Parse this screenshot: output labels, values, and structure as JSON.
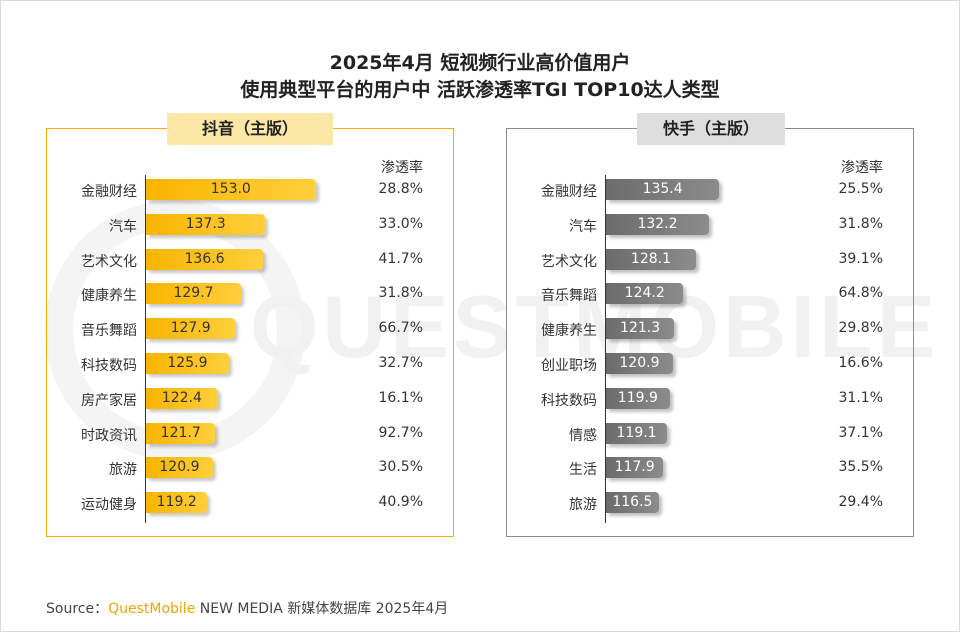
{
  "title_line1": "2025年4月 短视频行业高价值用户",
  "title_line2": "使用典型平台的用户中 活跃渗透率TGI TOP10达人类型",
  "watermark": "QUESTMOBILE",
  "colors": {
    "douyin_bar": "#f9b400",
    "kuaishou_bar": "#6b6b6b",
    "douyin_border": "#f0b000",
    "kuaishou_border": "#8c8c8c"
  },
  "chart_data": [
    {
      "type": "bar",
      "title": "抖音（主版）",
      "rate_label": "渗透率",
      "categories": [
        "金融财经",
        "汽车",
        "艺术文化",
        "健康养生",
        "音乐舞蹈",
        "科技数码",
        "房产家居",
        "时政资讯",
        "旅游",
        "运动健身"
      ],
      "values": [
        153.0,
        137.3,
        136.6,
        129.7,
        127.9,
        125.9,
        122.4,
        121.7,
        120.9,
        119.2
      ],
      "value_labels": [
        "153.0",
        "137.3",
        "136.6",
        "129.7",
        "127.9",
        "125.9",
        "122.4",
        "121.7",
        "120.9",
        "119.2"
      ],
      "rates": [
        "28.8%",
        "33.0%",
        "41.7%",
        "31.8%",
        "66.7%",
        "32.7%",
        "16.1%",
        "92.7%",
        "30.5%",
        "40.9%"
      ]
    },
    {
      "type": "bar",
      "title": "快手（主版）",
      "rate_label": "渗透率",
      "categories": [
        "金融财经",
        "汽车",
        "艺术文化",
        "音乐舞蹈",
        "健康养生",
        "创业职场",
        "科技数码",
        "情感",
        "生活",
        "旅游"
      ],
      "values": [
        135.4,
        132.2,
        128.1,
        124.2,
        121.3,
        120.9,
        119.9,
        119.1,
        117.9,
        116.5
      ],
      "value_labels": [
        "135.4",
        "132.2",
        "128.1",
        "124.2",
        "121.3",
        "120.9",
        "119.9",
        "119.1",
        "117.9",
        "116.5"
      ],
      "rates": [
        "25.5%",
        "31.8%",
        "39.1%",
        "64.8%",
        "29.8%",
        "16.6%",
        "31.1%",
        "37.1%",
        "35.5%",
        "29.4%"
      ]
    }
  ],
  "source": {
    "prefix": "Source：",
    "brand": "QuestMobile",
    "rest": " NEW MEDIA 新媒体数据库 2025年4月"
  }
}
